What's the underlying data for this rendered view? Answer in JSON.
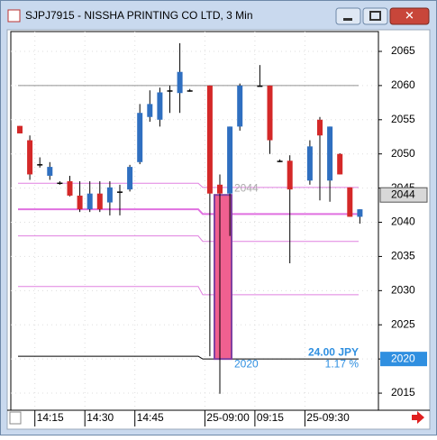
{
  "window": {
    "title": "SJPJ7915 - NISSHA PRINTING CO LTD, 3 Min"
  },
  "chart_data": {
    "type": "candlestick",
    "categories": [
      null,
      null,
      "14:15",
      null,
      null,
      null,
      null,
      "14:30",
      null,
      null,
      null,
      null,
      "14:45",
      null,
      null,
      null,
      null,
      null,
      null,
      "25-09:00",
      null,
      null,
      null,
      null,
      "09:15",
      null,
      null,
      null,
      null,
      "25-09:30",
      null,
      null,
      null,
      null,
      null
    ],
    "open": [
      2054.1,
      2052,
      2048.5,
      2046.8,
      2045.8,
      2046,
      2043.9,
      2041.9,
      2044.2,
      2042.9,
      2044.5,
      2044.8,
      2048.8,
      2055.4,
      2055,
      2059.3,
      2058.9,
      2059.3,
      null,
      2060,
      2045.5,
      2044.2,
      2054,
      null,
      2060,
      2060,
      2049,
      2049,
      null,
      2046.1,
      2055,
      2046.1,
      2050,
      2045.1,
      2040.8
    ],
    "high": [
      2054.1,
      2052.7,
      2049.5,
      2048.8,
      2046,
      2046.8,
      2046,
      2046,
      2046,
      2046,
      2045.5,
      2048.4,
      2057.3,
      2059.3,
      2059.7,
      2060,
      2066.2,
      2059.5,
      null,
      2060,
      2047,
      2054,
      2060.3,
      null,
      2063,
      2060,
      2049.2,
      2049.8,
      null,
      2052,
      2055.4,
      2054,
      2050.1,
      2045.1,
      2041.9
    ],
    "low": [
      2053,
      2046.2,
      2048,
      2046.2,
      2045.5,
      2043.8,
      2041.5,
      2041.5,
      2041.5,
      2041,
      2041,
      2044.5,
      2048.5,
      2054.7,
      2054,
      2056,
      2056,
      2059.1,
      null,
      2020.4,
      2014.9,
      2038,
      2053.4,
      null,
      2060,
      2050,
      2048.8,
      2034,
      null,
      2045.5,
      2043.2,
      2043,
      2047,
      2040.8,
      2039.8
    ],
    "close": [
      2053,
      2047,
      2048.5,
      2048.1,
      2045.8,
      2043.9,
      2041.9,
      2044.2,
      2041.9,
      2045.1,
      2044.5,
      2048.1,
      2056,
      2057.3,
      2059,
      2059.3,
      2062,
      2059.3,
      null,
      2044.2,
      2044.2,
      2054,
      2060,
      null,
      2060,
      2052,
      2049,
      2044.8,
      null,
      2051.1,
      2052.7,
      2054,
      2047,
      2040.8,
      2041.9
    ],
    "up_color": "#2f6fc0",
    "down_color": "#d42828",
    "flat_color": "#000000",
    "ylim": [
      2012.5,
      2067.9
    ],
    "yticks": [
      2015,
      2020,
      2025,
      2030,
      2035,
      2040,
      2045,
      2050,
      2055,
      2060,
      2065
    ],
    "grid": true,
    "lines": [
      {
        "color": "#909090",
        "left": 2060,
        "right": 2060
      },
      {
        "color": "#e080e0",
        "left": 2045.7,
        "right": 2045.1
      },
      {
        "color": "#e070e0",
        "left": 2041.9,
        "right": 2041.2
      },
      {
        "color": "#e080e0",
        "left": 2038,
        "right": 2037.2
      },
      {
        "color": "#e080e0",
        "left": 2030.6,
        "right": 2029.4
      },
      {
        "color": "#000000",
        "left": 2020.4,
        "right": 2020
      }
    ],
    "last_price": 2044,
    "cursor_price": 2020,
    "annotations": {
      "change": "24.00  JPY",
      "percent": "1.17  %"
    }
  }
}
